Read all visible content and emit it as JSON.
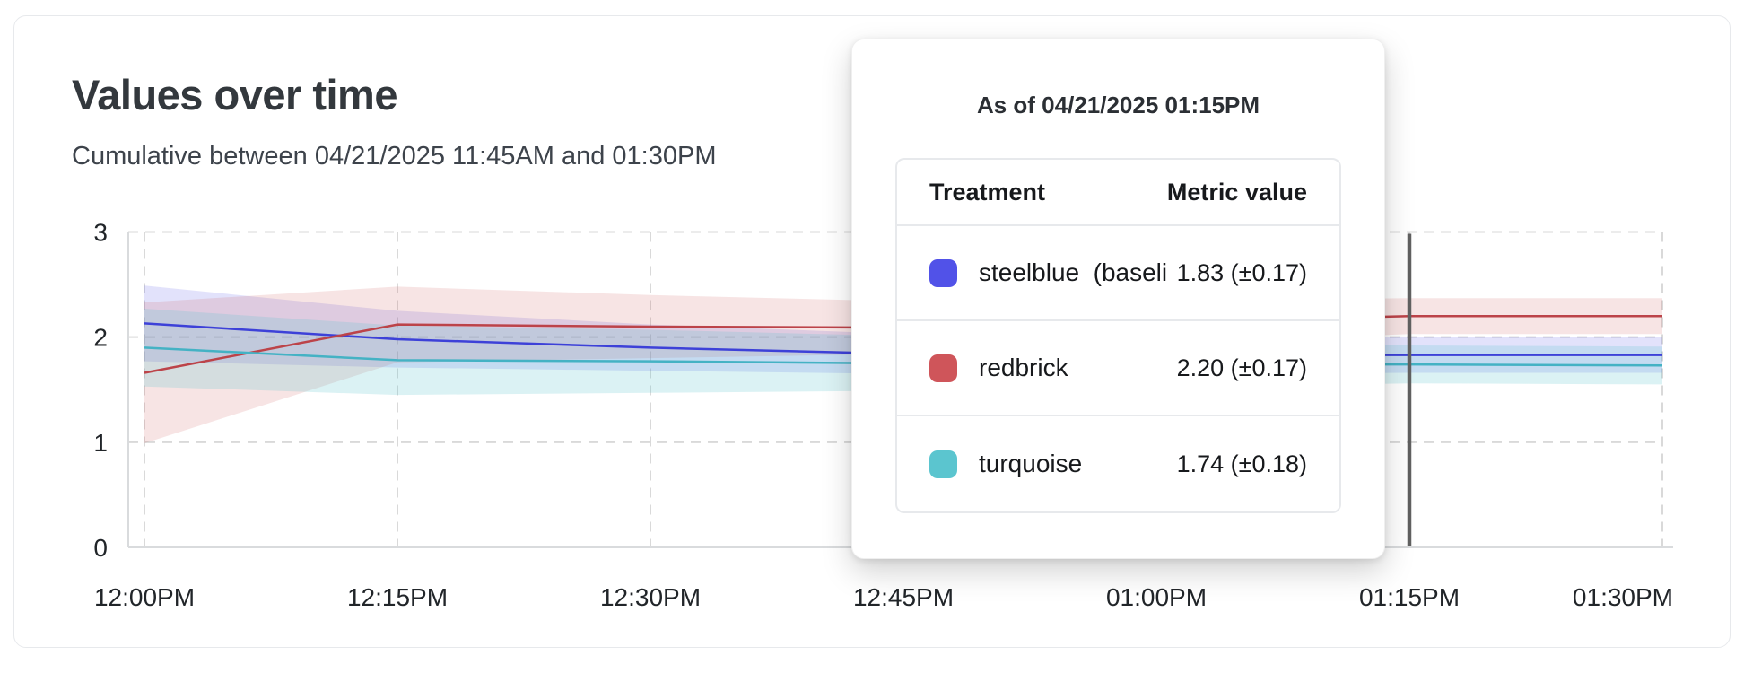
{
  "page": {
    "title": "Values over time",
    "subtitle": "Cumulative between 04/21/2025 11:45AM and 01:30PM"
  },
  "tooltip": {
    "title": "As of 04/21/2025 01:15PM",
    "columns": {
      "treatment": "Treatment",
      "metric": "Metric value"
    },
    "rows": [
      {
        "label": "steelblue  (baseli",
        "value": "1.83 (±0.17)",
        "swatch_color": "#5152e8"
      },
      {
        "label": "redbrick",
        "value": "2.20 (±0.17)",
        "swatch_color": "#cf555a"
      },
      {
        "label": "turquoise",
        "value": "1.74 (±0.18)",
        "swatch_color": "#5bc5cf"
      }
    ]
  },
  "chart_data": {
    "type": "line",
    "title": "Values over time",
    "xlabel": "",
    "ylabel": "",
    "x": [
      "12:00PM",
      "12:15PM",
      "12:30PM",
      "12:45PM",
      "01:00PM",
      "01:15PM",
      "01:30PM"
    ],
    "ylim": [
      0,
      3
    ],
    "yticks": [
      0,
      1,
      2,
      3
    ],
    "grid": true,
    "legend_position": "none",
    "cursor": {
      "x": "01:15PM",
      "color": "#616161"
    },
    "series": [
      {
        "name": "steelblue (baseline)",
        "color": "#3d41d8",
        "band_color": "rgba(84,84,232,0.17)",
        "values": [
          2.13,
          1.98,
          1.9,
          1.84,
          1.83,
          1.83,
          1.83
        ],
        "err": [
          0.36,
          0.27,
          0.22,
          0.19,
          0.18,
          0.17,
          0.17
        ]
      },
      {
        "name": "redbrick",
        "color": "#bc4349",
        "band_color": "rgba(207,85,90,0.16)",
        "values": [
          1.66,
          2.12,
          2.1,
          2.09,
          2.14,
          2.2,
          2.2
        ],
        "err": [
          0.67,
          0.36,
          0.3,
          0.25,
          0.21,
          0.17,
          0.17
        ]
      },
      {
        "name": "turquoise",
        "color": "#44b2c4",
        "band_color": "rgba(91,197,207,0.22)",
        "values": [
          1.9,
          1.78,
          1.77,
          1.75,
          1.74,
          1.74,
          1.73
        ],
        "err": [
          0.37,
          0.33,
          0.3,
          0.26,
          0.22,
          0.18,
          0.18
        ]
      }
    ]
  }
}
